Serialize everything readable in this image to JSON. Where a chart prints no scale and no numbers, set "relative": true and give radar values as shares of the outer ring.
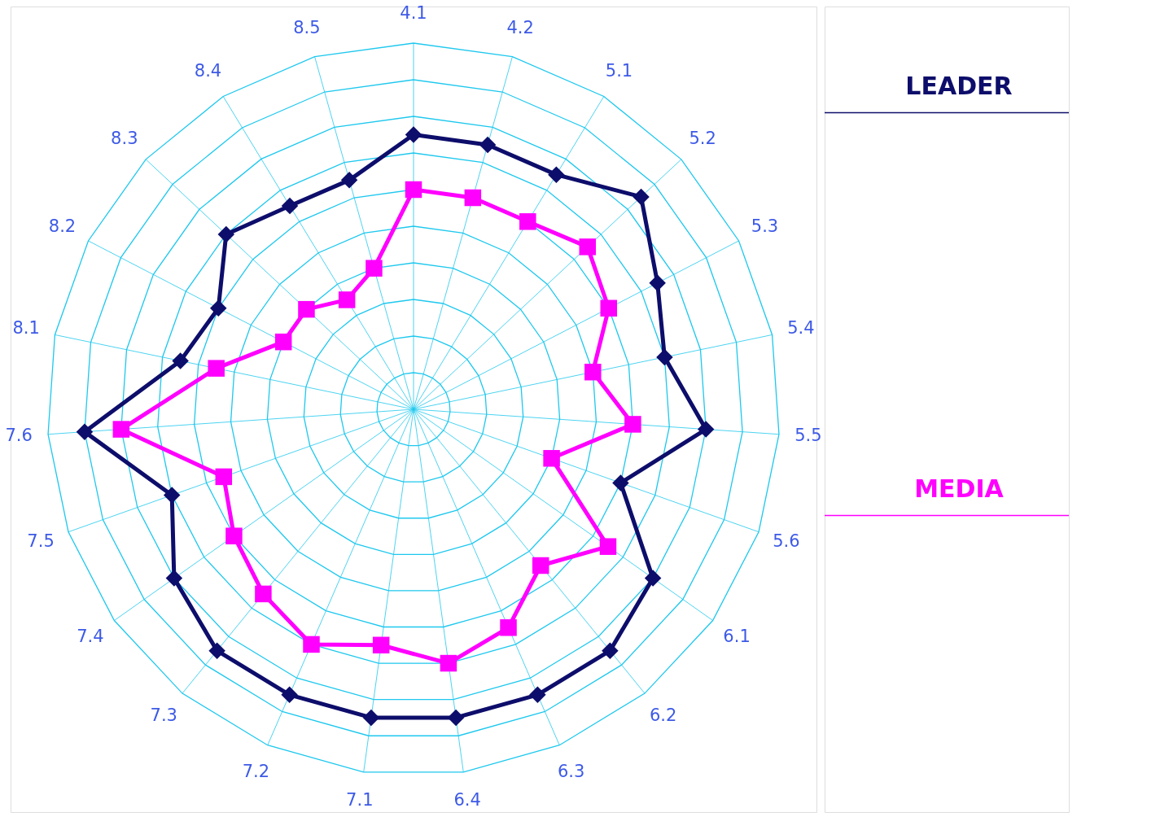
{
  "chart_data": {
    "type": "radar",
    "relative": true,
    "grid": true,
    "categories": [
      "4.1",
      "4.2",
      "5.1",
      "5.2",
      "5.3",
      "5.4",
      "5.5",
      "5.6",
      "6.1",
      "6.2",
      "6.3",
      "6.4",
      "7.1",
      "7.2",
      "7.3",
      "7.4",
      "7.5",
      "7.6",
      "8.1",
      "8.2",
      "8.3",
      "8.4",
      "8.5"
    ],
    "series": [
      {
        "name": "LEADER",
        "color": "#0d0d6b",
        "marker": "diamond",
        "values": [
          0.75,
          0.75,
          0.75,
          0.85,
          0.75,
          0.7,
          0.8,
          0.6,
          0.8,
          0.85,
          0.85,
          0.85,
          0.85,
          0.85,
          0.85,
          0.8,
          0.7,
          0.9,
          0.65,
          0.6,
          0.7,
          0.65,
          0.65
        ]
      },
      {
        "name": "MEDIA",
        "color": "#ff00ff",
        "marker": "square",
        "values": [
          0.6,
          0.6,
          0.6,
          0.65,
          0.6,
          0.5,
          0.6,
          0.4,
          0.65,
          0.55,
          0.65,
          0.7,
          0.65,
          0.7,
          0.65,
          0.6,
          0.55,
          0.8,
          0.55,
          0.4,
          0.4,
          0.35,
          0.4
        ]
      }
    ]
  }
}
